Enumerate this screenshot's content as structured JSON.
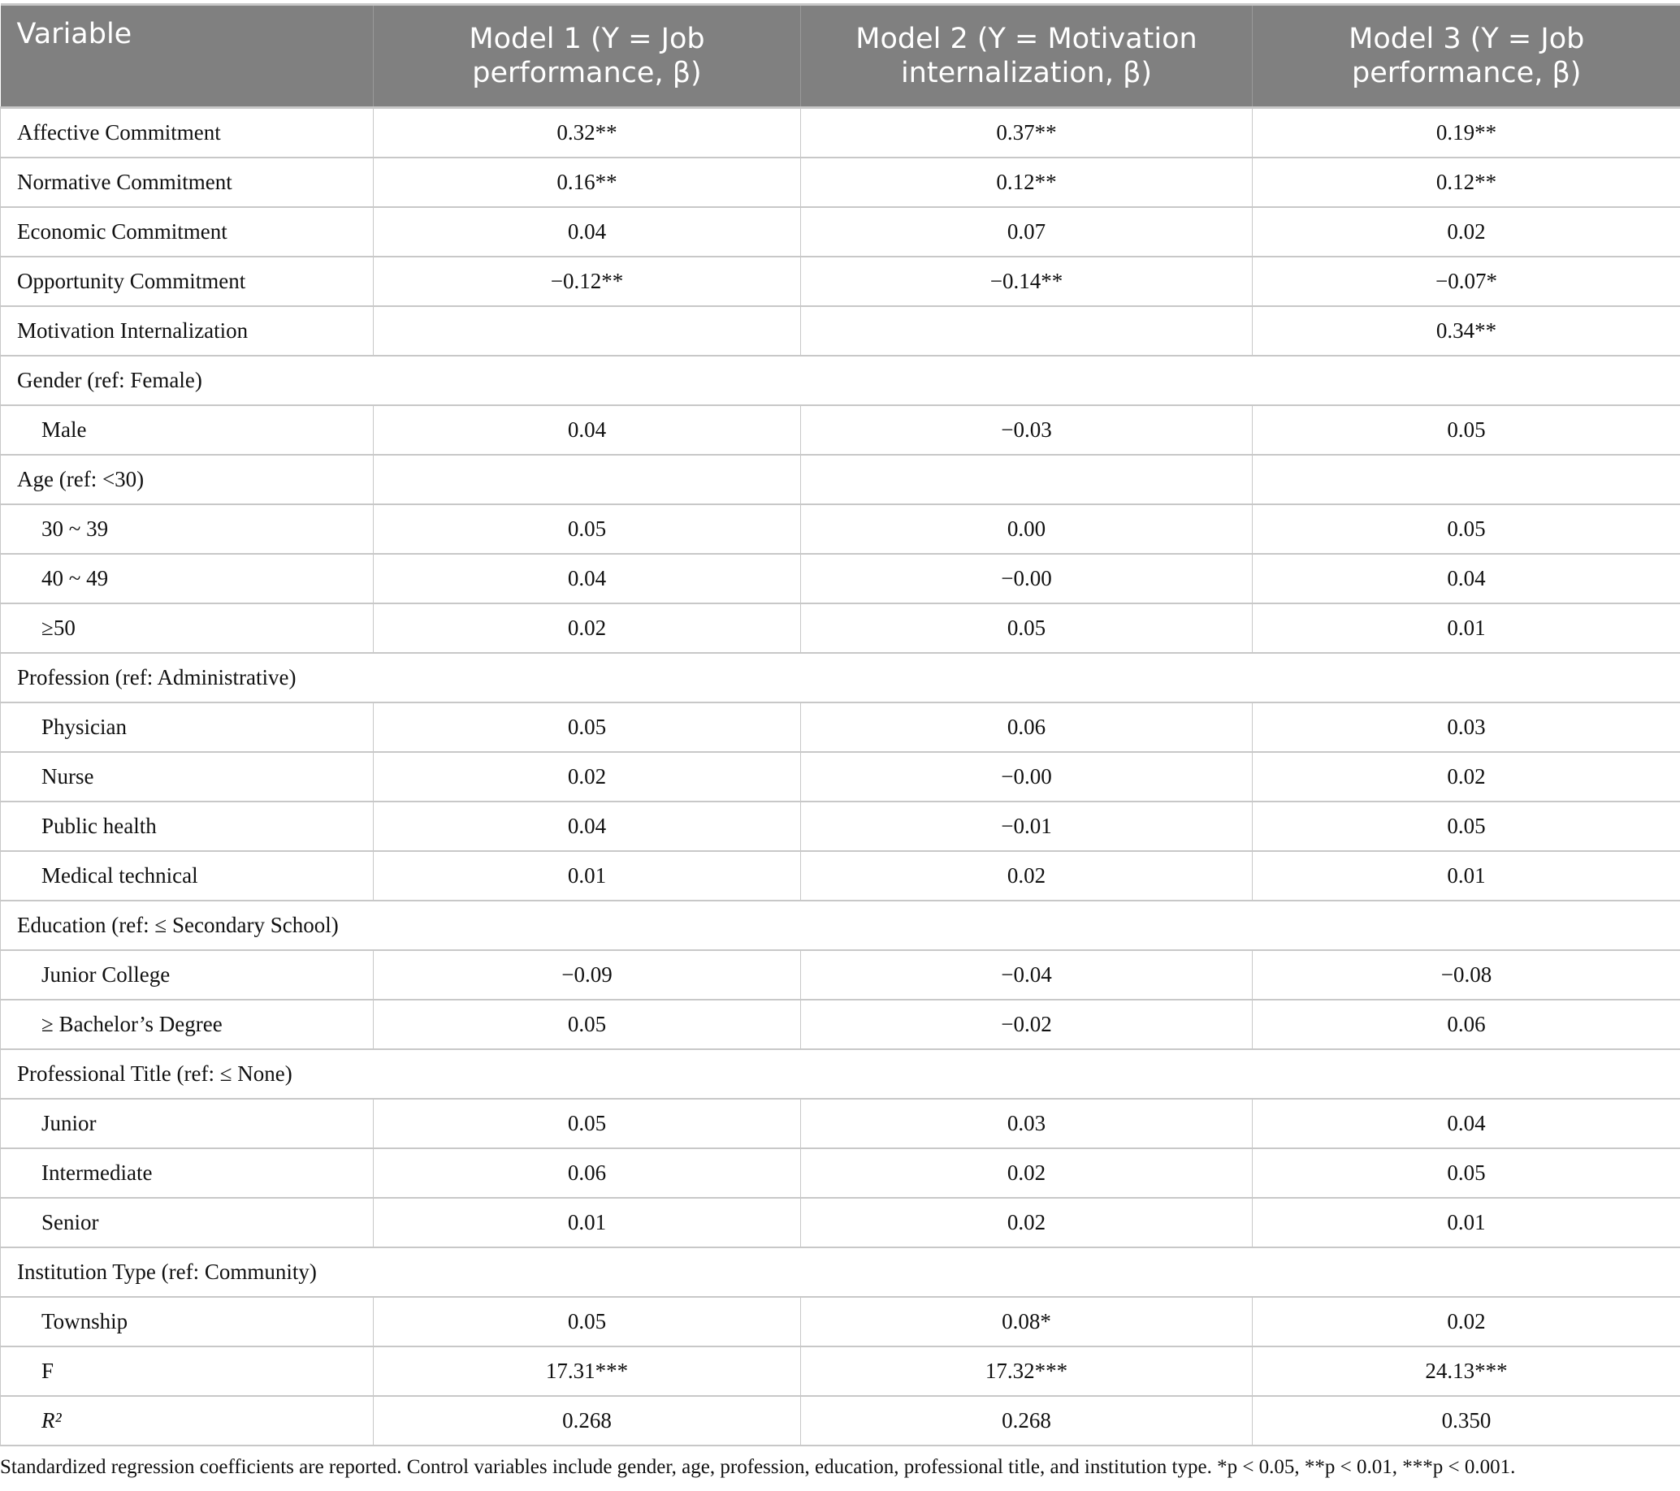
{
  "table": {
    "headers": [
      "Variable",
      "Model 1 (Y = Job performance, β)",
      "Model 2 (Y = Motivation internalization, β)",
      "Model 3 (Y = Job performance, β)"
    ],
    "header_color": "#808080",
    "rows": [
      {
        "label": "Affective Commitment",
        "indent": false,
        "values": [
          "0.32**",
          "0.37**",
          "0.19**"
        ]
      },
      {
        "label": "Normative Commitment",
        "indent": false,
        "values": [
          "0.16**",
          "0.12**",
          "0.12**"
        ]
      },
      {
        "label": "Economic Commitment",
        "indent": false,
        "values": [
          "0.04",
          "0.07",
          "0.02"
        ]
      },
      {
        "label": "Opportunity Commitment",
        "indent": false,
        "values": [
          "−0.12**",
          "−0.14**",
          "−0.07*"
        ]
      },
      {
        "label": "Motivation Internalization",
        "indent": false,
        "values": [
          "",
          "",
          "0.34**"
        ]
      },
      {
        "label": "Gender (ref: Female)",
        "group": true
      },
      {
        "label": "Male",
        "indent": true,
        "values": [
          "0.04",
          "−0.03",
          "0.05"
        ]
      },
      {
        "label": "Age (ref: <30)",
        "indent": false,
        "values": [
          "",
          "",
          ""
        ]
      },
      {
        "label": "30 ~ 39",
        "indent": true,
        "values": [
          "0.05",
          "0.00",
          "0.05"
        ]
      },
      {
        "label": "40 ~ 49",
        "indent": true,
        "values": [
          "0.04",
          "−0.00",
          "0.04"
        ]
      },
      {
        "label": "≥50",
        "indent": true,
        "values": [
          "0.02",
          "0.05",
          "0.01"
        ]
      },
      {
        "label": "Profession (ref: Administrative)",
        "group": true
      },
      {
        "label": "Physician",
        "indent": true,
        "values": [
          "0.05",
          "0.06",
          "0.03"
        ]
      },
      {
        "label": "Nurse",
        "indent": true,
        "values": [
          "0.02",
          "−0.00",
          "0.02"
        ]
      },
      {
        "label": "Public health",
        "indent": true,
        "values": [
          "0.04",
          "−0.01",
          "0.05"
        ]
      },
      {
        "label": "Medical technical",
        "indent": true,
        "values": [
          "0.01",
          "0.02",
          "0.01"
        ]
      },
      {
        "label": "Education (ref: ≤ Secondary School)",
        "group": true
      },
      {
        "label": "Junior College",
        "indent": true,
        "values": [
          "−0.09",
          "−0.04",
          "−0.08"
        ]
      },
      {
        "label": "≥ Bachelor’s Degree",
        "indent": true,
        "values": [
          "0.05",
          "−0.02",
          "0.06"
        ]
      },
      {
        "label": "Professional Title (ref: ≤ None)",
        "group": true
      },
      {
        "label": "Junior",
        "indent": true,
        "values": [
          "0.05",
          "0.03",
          "0.04"
        ]
      },
      {
        "label": "Intermediate",
        "indent": true,
        "values": [
          "0.06",
          "0.02",
          "0.05"
        ]
      },
      {
        "label": "Senior",
        "indent": true,
        "values": [
          "0.01",
          "0.02",
          "0.01"
        ]
      },
      {
        "label": "Institution Type (ref: Community)",
        "group": true
      },
      {
        "label": "Township",
        "indent": true,
        "values": [
          "0.05",
          "0.08*",
          "0.02"
        ]
      },
      {
        "label": "F",
        "indent": true,
        "values": [
          "17.31***",
          "17.32***",
          "24.13***"
        ]
      },
      {
        "label": "R²",
        "indent": true,
        "italic": true,
        "values": [
          "0.268",
          "0.268",
          "0.350"
        ]
      }
    ]
  },
  "footnote": "Standardized regression coefficients are reported. Control variables include gender, age, profession, education, professional title, and institution type. *p < 0.05, **p < 0.01, ***p < 0.001."
}
